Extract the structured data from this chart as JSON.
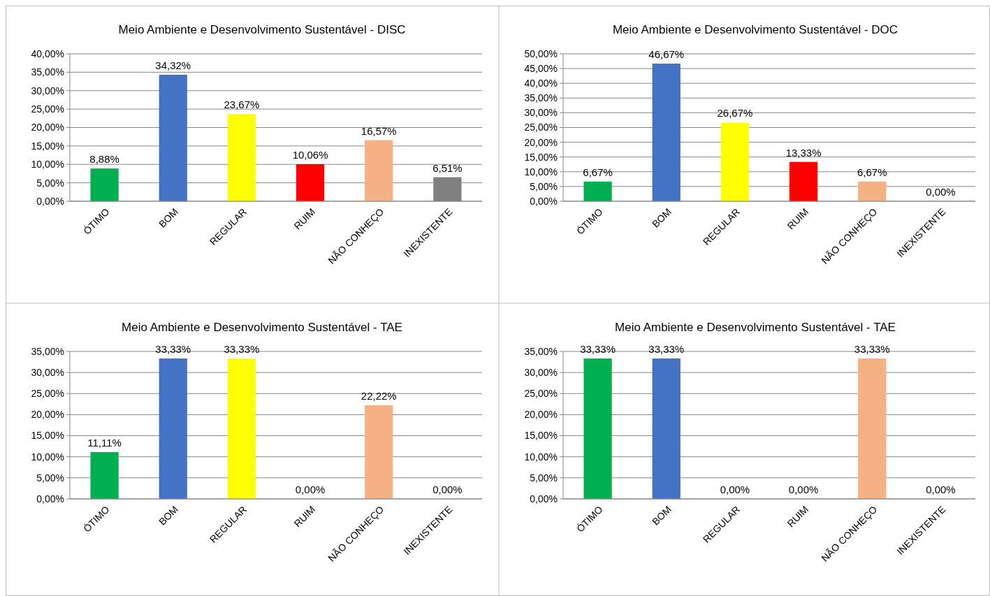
{
  "chart_data": [
    {
      "type": "bar",
      "title": "Meio Ambiente e Desenvolvimento Sustentável - DISC",
      "categories": [
        "ÓTIMO",
        "BOM",
        "REGULAR",
        "RUIM",
        "NÃO CONHEÇO",
        "INEXISTENTE"
      ],
      "values": [
        8.88,
        34.32,
        23.67,
        10.06,
        16.57,
        6.51
      ],
      "value_labels": [
        "8,88%",
        "34,32%",
        "23,67%",
        "10,06%",
        "16,57%",
        "6,51%"
      ],
      "colors": [
        "#00b050",
        "#4472c4",
        "#ffff00",
        "#ff0000",
        "#f4b183",
        "#808080"
      ],
      "ylim": [
        0,
        40
      ],
      "yticks": [
        {
          "value": 0,
          "label": "0,00%"
        },
        {
          "value": 5,
          "label": "5,00%"
        },
        {
          "value": 10,
          "label": "10,00%"
        },
        {
          "value": 15,
          "label": "15,00%"
        },
        {
          "value": 20,
          "label": "20,00%"
        },
        {
          "value": 25,
          "label": "25,00%"
        },
        {
          "value": 30,
          "label": "30,00%"
        },
        {
          "value": 35,
          "label": "35,00%"
        },
        {
          "value": 40,
          "label": "40,00%"
        }
      ],
      "grid": "y"
    },
    {
      "type": "bar",
      "title": "Meio Ambiente e Desenvolvimento Sustentável - DOC",
      "categories": [
        "ÓTIMO",
        "BOM",
        "REGULAR",
        "RUIM",
        "NÃO CONHEÇO",
        "INEXISTENTE"
      ],
      "values": [
        6.67,
        46.67,
        26.67,
        13.33,
        6.67,
        0
      ],
      "value_labels": [
        "6,67%",
        "46,67%",
        "26,67%",
        "13,33%",
        "6,67%",
        "0,00%"
      ],
      "colors": [
        "#00b050",
        "#4472c4",
        "#ffff00",
        "#ff0000",
        "#f4b183",
        "#808080"
      ],
      "ylim": [
        0,
        50
      ],
      "yticks": [
        {
          "value": 0,
          "label": "0,00%"
        },
        {
          "value": 5,
          "label": "5,00%"
        },
        {
          "value": 10,
          "label": "10,00%"
        },
        {
          "value": 15,
          "label": "15,00%"
        },
        {
          "value": 20,
          "label": "20,00%"
        },
        {
          "value": 25,
          "label": "25,00%"
        },
        {
          "value": 30,
          "label": "30,00%"
        },
        {
          "value": 35,
          "label": "35,00%"
        },
        {
          "value": 40,
          "label": "40,00%"
        },
        {
          "value": 45,
          "label": "45,00%"
        },
        {
          "value": 50,
          "label": "50,00%"
        }
      ],
      "grid": "y"
    },
    {
      "type": "bar",
      "title": "Meio Ambiente e Desenvolvimento Sustentável - TAE",
      "categories": [
        "ÓTIMO",
        "BOM",
        "REGULAR",
        "RUIM",
        "NÃO CONHEÇO",
        "INEXISTENTE"
      ],
      "values": [
        11.11,
        33.33,
        33.33,
        0,
        22.22,
        0
      ],
      "value_labels": [
        "11,11%",
        "33,33%",
        "33,33%",
        "0,00%",
        "22,22%",
        "0,00%"
      ],
      "colors": [
        "#00b050",
        "#4472c4",
        "#ffff00",
        "#ff0000",
        "#f4b183",
        "#808080"
      ],
      "ylim": [
        0,
        35
      ],
      "yticks": [
        {
          "value": 0,
          "label": "0,00%"
        },
        {
          "value": 5,
          "label": "5,00%"
        },
        {
          "value": 10,
          "label": "10,00%"
        },
        {
          "value": 15,
          "label": "15,00%"
        },
        {
          "value": 20,
          "label": "20,00%"
        },
        {
          "value": 25,
          "label": "25,00%"
        },
        {
          "value": 30,
          "label": "30,00%"
        },
        {
          "value": 35,
          "label": "35,00%"
        }
      ],
      "grid": "y"
    },
    {
      "type": "bar",
      "title": "Meio Ambiente e Desenvolvimento Sustentável - TAE",
      "categories": [
        "ÓTIMO",
        "BOM",
        "REGULAR",
        "RUIM",
        "NÃO CONHEÇO",
        "INEXISTENTE"
      ],
      "values": [
        33.33,
        33.33,
        0,
        0,
        33.33,
        0
      ],
      "value_labels": [
        "33,33%",
        "33,33%",
        "0,00%",
        "0,00%",
        "33,33%",
        "0,00%"
      ],
      "colors": [
        "#00b050",
        "#4472c4",
        "#ffff00",
        "#ff0000",
        "#f4b183",
        "#808080"
      ],
      "ylim": [
        0,
        35
      ],
      "yticks": [
        {
          "value": 0,
          "label": "0,00%"
        },
        {
          "value": 5,
          "label": "5,00%"
        },
        {
          "value": 10,
          "label": "10,00%"
        },
        {
          "value": 15,
          "label": "15,00%"
        },
        {
          "value": 20,
          "label": "20,00%"
        },
        {
          "value": 25,
          "label": "25,00%"
        },
        {
          "value": 30,
          "label": "30,00%"
        },
        {
          "value": 35,
          "label": "35,00%"
        }
      ],
      "grid": "y"
    }
  ]
}
